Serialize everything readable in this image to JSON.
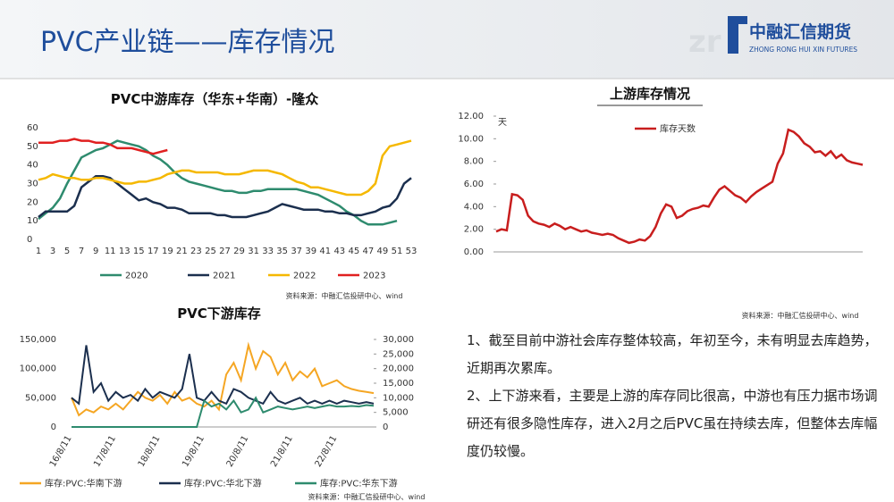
{
  "header": {
    "title": "PVC产业链——库存情况",
    "logo_cn": "中融汇信期货",
    "logo_en": "ZHONG RONG HUI XIN FUTURES"
  },
  "chart_data": [
    {
      "type": "line",
      "title": "PVC中游库存（华东+华南）-隆众",
      "source": "资料来源：中融汇信投研中心、wind",
      "categories": [
        1,
        null,
        3,
        null,
        5,
        null,
        7,
        null,
        9,
        null,
        11,
        null,
        13,
        null,
        15,
        null,
        17,
        null,
        19,
        null,
        21,
        null,
        23,
        null,
        25,
        null,
        27,
        null,
        29,
        null,
        31,
        null,
        33,
        null,
        35,
        null,
        37,
        null,
        39,
        null,
        41,
        null,
        43,
        null,
        45,
        null,
        47,
        null,
        49,
        null,
        51,
        null,
        53
      ],
      "ylim": [
        0,
        60
      ],
      "yticks": [
        0,
        10,
        20,
        30,
        40,
        50,
        60
      ],
      "legend": "bottom",
      "series": [
        {
          "name": "2020",
          "color": "#2e8b6e",
          "values": [
            11,
            14,
            17,
            22,
            30,
            37,
            44,
            46,
            48,
            49,
            51,
            53,
            52,
            51,
            50,
            48,
            45,
            43,
            40,
            36,
            33,
            31,
            30,
            29,
            28,
            27,
            26,
            26,
            25,
            25,
            26,
            26,
            27,
            27,
            27,
            27,
            27,
            26,
            25,
            24,
            22,
            20,
            18,
            15,
            13,
            10,
            8,
            8,
            8,
            9,
            10,
            null,
            null
          ]
        },
        {
          "name": "2021",
          "color": "#1b2f4e",
          "values": [
            12,
            15,
            15,
            15,
            15,
            18,
            28,
            31,
            34,
            34,
            33,
            30,
            27,
            24,
            21,
            22,
            20,
            19,
            17,
            17,
            16,
            14,
            14,
            14,
            14,
            13,
            13,
            12,
            12,
            12,
            13,
            14,
            15,
            17,
            19,
            18,
            17,
            16,
            16,
            16,
            15,
            15,
            14,
            14,
            13,
            13,
            14,
            15,
            17,
            18,
            22,
            30,
            33
          ]
        },
        {
          "name": "2022",
          "color": "#f5b800",
          "values": [
            32,
            33,
            35,
            34,
            33,
            33,
            32,
            32,
            33,
            33,
            32,
            31,
            30,
            30,
            31,
            31,
            32,
            33,
            35,
            36,
            37,
            37,
            36,
            36,
            36,
            36,
            35,
            35,
            35,
            36,
            37,
            37,
            37,
            36,
            35,
            33,
            31,
            30,
            28,
            28,
            27,
            26,
            25,
            24,
            24,
            24,
            26,
            30,
            45,
            50,
            51,
            52,
            53
          ]
        },
        {
          "name": "2023",
          "color": "#e02020",
          "values": [
            52,
            52,
            52,
            53,
            53,
            54,
            53,
            53,
            52,
            52,
            51,
            49,
            49,
            49,
            48,
            47,
            46,
            47,
            48,
            null,
            null,
            null,
            null,
            null,
            null,
            null,
            null,
            null,
            null,
            null,
            null,
            null,
            null,
            null,
            null,
            null,
            null,
            null,
            null,
            null,
            null,
            null,
            null,
            null,
            null,
            null,
            null,
            null,
            null,
            null,
            null,
            null,
            null
          ]
        }
      ]
    },
    {
      "type": "line",
      "title": "上游库存情况",
      "source": "资料来源：中融汇信投研中心、wind",
      "ylabel": "天",
      "categories": [
        null,
        null,
        null,
        null,
        null,
        null,
        null,
        null,
        null,
        null,
        null,
        null,
        null,
        null,
        null,
        null,
        null,
        null,
        null,
        null,
        null,
        null,
        null,
        null,
        null,
        null,
        null,
        null,
        null,
        null,
        null,
        null,
        null,
        null,
        null,
        null,
        null,
        null,
        null,
        null,
        null,
        null,
        null,
        null,
        null,
        null,
        null,
        null,
        null,
        null,
        null,
        null,
        null,
        null,
        null,
        null,
        null,
        null,
        null,
        null,
        null,
        null,
        null,
        null,
        null,
        null,
        null,
        null,
        null,
        null
      ],
      "ylim": [
        0,
        12
      ],
      "yticks": [
        {
          "value": 0,
          "label": "0.00"
        },
        {
          "value": 2,
          "label": "2.00"
        },
        {
          "value": 4,
          "label": "4.00"
        },
        {
          "value": 6,
          "label": "6.00"
        },
        {
          "value": 8,
          "label": "8.00"
        },
        {
          "value": 10,
          "label": "10.00"
        },
        {
          "value": 12,
          "label": "12.00"
        }
      ],
      "legend": "top",
      "series": [
        {
          "name": "库存天数",
          "color": "#c81e1e",
          "values": [
            1.8,
            2.0,
            1.9,
            5.1,
            5.0,
            4.6,
            3.2,
            2.7,
            2.5,
            2.4,
            2.2,
            2.5,
            2.3,
            2.0,
            2.2,
            2.0,
            1.8,
            1.9,
            1.7,
            1.6,
            1.5,
            1.6,
            1.5,
            1.2,
            1.0,
            0.8,
            0.9,
            1.1,
            1.0,
            1.4,
            2.2,
            3.4,
            4.2,
            4.0,
            3.0,
            3.2,
            3.6,
            3.8,
            3.9,
            4.1,
            4.0,
            4.8,
            5.5,
            5.8,
            5.4,
            5.0,
            4.8,
            4.4,
            4.9,
            5.3,
            5.6,
            5.9,
            6.2,
            7.8,
            8.7,
            10.8,
            10.6,
            10.2,
            9.6,
            9.3,
            8.8,
            8.9,
            8.5,
            8.9,
            8.3,
            8.6,
            8.1,
            7.9,
            7.8,
            7.7
          ]
        }
      ]
    },
    {
      "type": "line",
      "title": "PVC下游库存",
      "source": "资料来源：中融汇信投研中心、wind",
      "categories": [
        "16/8/11",
        null,
        null,
        null,
        null,
        null,
        "17/8/11",
        null,
        null,
        null,
        null,
        null,
        "18/8/11",
        null,
        null,
        null,
        null,
        null,
        "19/8/11",
        null,
        null,
        null,
        null,
        null,
        "20/8/11",
        null,
        null,
        null,
        null,
        null,
        "21/8/11",
        null,
        null,
        null,
        null,
        null,
        "22/8/11",
        null,
        null,
        null,
        null,
        null
      ],
      "ylim": [
        0,
        150000
      ],
      "yticks": [
        0,
        {
          "value": 50000,
          "label": "50,000"
        },
        {
          "value": 100000,
          "label": "100,000"
        },
        {
          "value": 150000,
          "label": "150,000"
        }
      ],
      "y2lim": [
        0,
        30000
      ],
      "y2ticks": [
        0,
        {
          "value": 5000,
          "label": "5,000"
        },
        {
          "value": 10000,
          "label": "10,000"
        },
        {
          "value": 15000,
          "label": "15,000"
        },
        {
          "value": 20000,
          "label": "20,000"
        },
        {
          "value": 25000,
          "label": "25,000"
        },
        {
          "value": 30000,
          "label": "30,000"
        }
      ],
      "legend": "bottom",
      "series": [
        {
          "name": "库存:PVC:华南下游",
          "color": "#f5a623",
          "values": [
            50000,
            20000,
            30000,
            25000,
            35000,
            30000,
            40000,
            30000,
            45000,
            60000,
            50000,
            45000,
            55000,
            40000,
            60000,
            45000,
            50000,
            40000,
            35000,
            45000,
            30000,
            90000,
            110000,
            80000,
            140000,
            100000,
            130000,
            120000,
            90000,
            110000,
            80000,
            95000,
            85000,
            100000,
            70000,
            75000,
            80000,
            70000,
            65000,
            62000,
            60000,
            58000
          ]
        },
        {
          "name": "库存:PVC:华北下游",
          "color": "#1b2f4e",
          "axis": "y2",
          "values": [
            10000,
            8000,
            28000,
            12000,
            15000,
            9000,
            12000,
            10000,
            11000,
            9000,
            13000,
            10000,
            12000,
            11000,
            10000,
            13000,
            25000,
            10000,
            9000,
            12000,
            9000,
            8000,
            13000,
            12000,
            10000,
            9000,
            8000,
            12000,
            9000,
            8000,
            9000,
            10000,
            8000,
            9000,
            8000,
            9000,
            8000,
            9000,
            8500,
            8000,
            8500,
            8000
          ]
        },
        {
          "name": "库存:PVC:华东下游",
          "color": "#2e8b6e",
          "axis": "y2",
          "values": [
            0,
            0,
            0,
            0,
            0,
            0,
            0,
            0,
            0,
            0,
            0,
            0,
            0,
            0,
            0,
            0,
            0,
            0,
            9000,
            7000,
            8000,
            6000,
            9000,
            5000,
            6000,
            10000,
            5000,
            6000,
            7000,
            6500,
            6000,
            6500,
            7000,
            6500,
            7000,
            7500,
            7000,
            7000,
            7200,
            7000,
            7500,
            7300
          ]
        }
      ]
    }
  ],
  "paragraphs": [
    "1、截至目前中游社会库存整体较高，年初至今，未有明显去库趋势，近期再次累库。",
    "2、上下游来看，主要是上游的库存同比很高，中游也有压力据市场调研还有很多隐性库存，进入2月之后PVC虽在持续去库，但整体去库幅度仍较慢。"
  ]
}
